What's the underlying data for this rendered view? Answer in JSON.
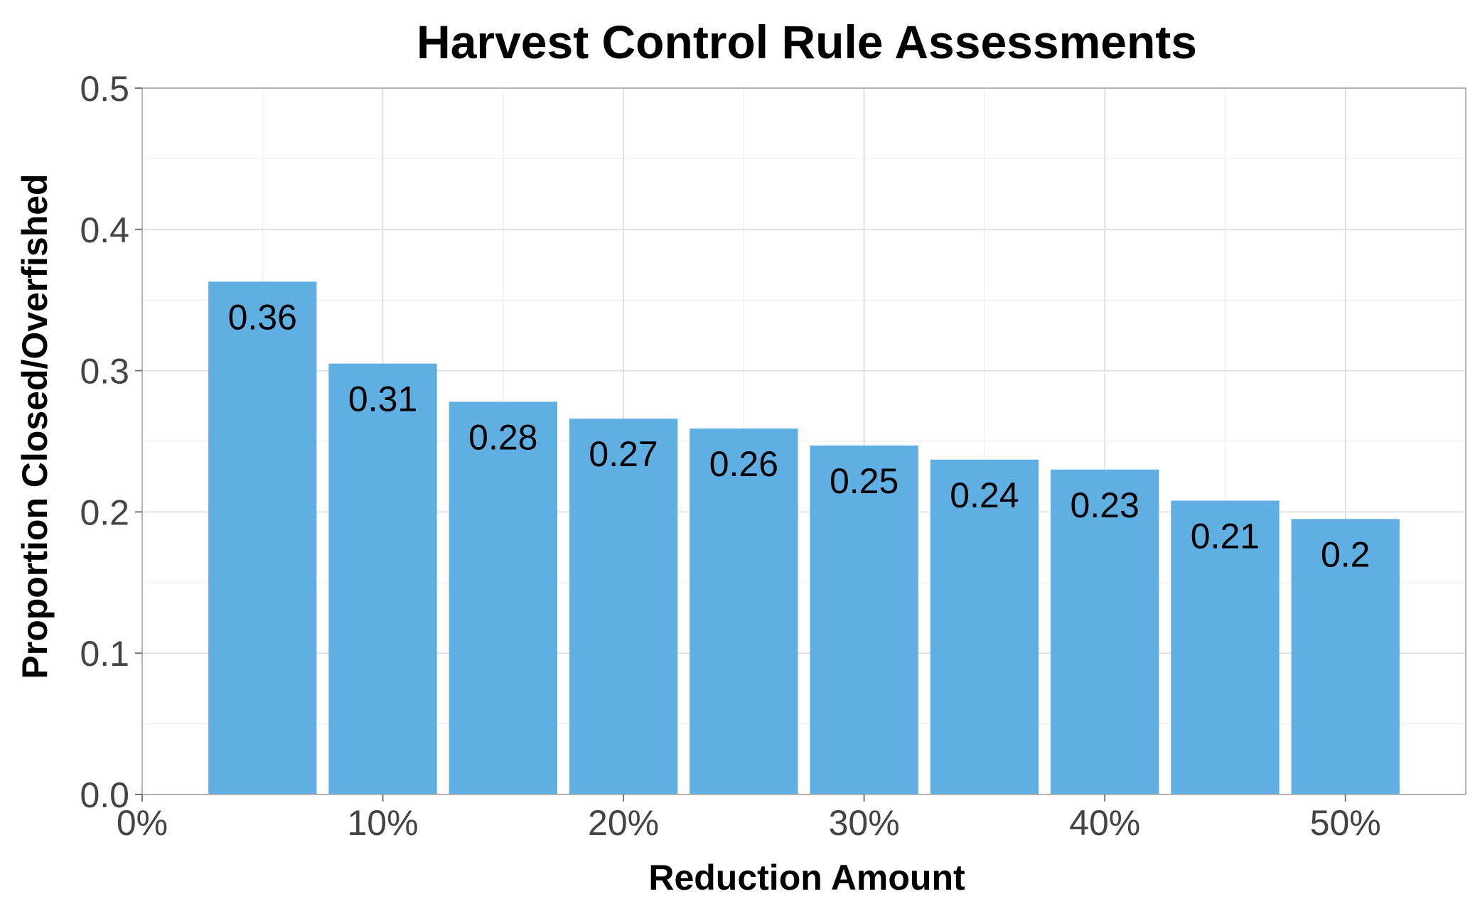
{
  "chart_data": {
    "type": "bar",
    "title": "Harvest Control Rule Assessments",
    "xlabel": "Reduction Amount",
    "ylabel": "Proportion Closed/Overfished",
    "x": [
      5,
      10,
      15,
      20,
      25,
      30,
      35,
      40,
      45,
      50
    ],
    "values": [
      0.363,
      0.305,
      0.278,
      0.266,
      0.259,
      0.247,
      0.237,
      0.23,
      0.208,
      0.195
    ],
    "value_labels": [
      "0.36",
      "0.31",
      "0.28",
      "0.27",
      "0.26",
      "0.25",
      "0.24",
      "0.23",
      "0.21",
      "0.2"
    ],
    "xlim": [
      0,
      55
    ],
    "ylim": [
      0,
      0.5
    ],
    "x_ticks": [
      0,
      10,
      20,
      30,
      40,
      50
    ],
    "x_tick_labels": [
      "0%",
      "10%",
      "20%",
      "30%",
      "40%",
      "50%"
    ],
    "y_ticks": [
      0,
      0.1,
      0.2,
      0.3,
      0.4,
      0.5
    ],
    "y_tick_labels": [
      "0.0",
      "0.1",
      "0.2",
      "0.3",
      "0.4",
      "0.5"
    ],
    "grid": true,
    "bar_color": "#5DADE2",
    "bar_width": 4.5
  }
}
